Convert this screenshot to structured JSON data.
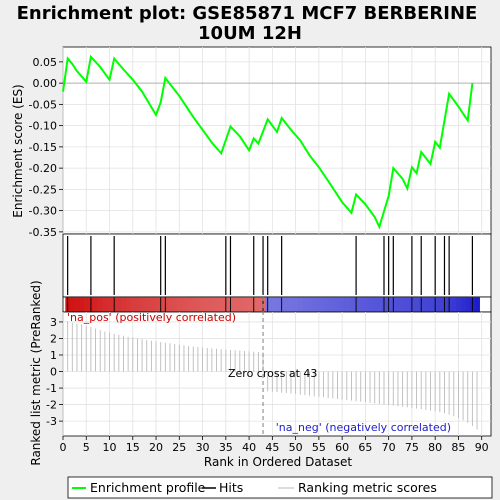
{
  "chart_data": {
    "type": "line",
    "title_line1": "Enrichment plot: GSE85871 MCF7 BERBERINE",
    "title_line2": "10UM 12H",
    "xlabel": "Rank in Ordered Dataset",
    "es_ylabel": "Enrichment score (ES)",
    "rank_ylabel": "Ranked list metric (PreRanked)",
    "x_ticks": [
      0,
      5,
      10,
      15,
      20,
      25,
      30,
      35,
      40,
      45,
      50,
      55,
      60,
      65,
      70,
      75,
      80,
      85,
      90
    ],
    "xlim": [
      0,
      92
    ],
    "es_ticks": [
      0.05,
      0.0,
      -0.05,
      -0.1,
      -0.15,
      -0.2,
      -0.25,
      -0.3,
      -0.35
    ],
    "es_tick_labels": [
      "0.05",
      "0.00",
      "-0.05",
      "-0.10",
      "-0.15",
      "-0.20",
      "-0.25",
      "-0.30",
      "-0.35"
    ],
    "es_ylim": [
      -0.355,
      0.085
    ],
    "rank_ticks": [
      3,
      2,
      1,
      0,
      -1,
      -2,
      -3
    ],
    "rank_ylim": [
      -3.9,
      3.6
    ],
    "es_line_color": "#00ff00",
    "hits": [
      1,
      6,
      11,
      21,
      22,
      35,
      36,
      41,
      43,
      44,
      47,
      63,
      69,
      70,
      71,
      75,
      77,
      80,
      82,
      83,
      88
    ],
    "es_curve": [
      [
        0,
        -0.02
      ],
      [
        1,
        0.058
      ],
      [
        2,
        0.045
      ],
      [
        3,
        0.028
      ],
      [
        5,
        0.003
      ],
      [
        6,
        0.062
      ],
      [
        8,
        0.038
      ],
      [
        10,
        0.008
      ],
      [
        11,
        0.058
      ],
      [
        13,
        0.032
      ],
      [
        15,
        0.008
      ],
      [
        17,
        -0.02
      ],
      [
        20,
        -0.075
      ],
      [
        21,
        -0.045
      ],
      [
        22,
        0.012
      ],
      [
        25,
        -0.03
      ],
      [
        28,
        -0.08
      ],
      [
        32,
        -0.14
      ],
      [
        34,
        -0.165
      ],
      [
        36,
        -0.102
      ],
      [
        38,
        -0.125
      ],
      [
        40,
        -0.158
      ],
      [
        41,
        -0.13
      ],
      [
        42,
        -0.142
      ],
      [
        44,
        -0.085
      ],
      [
        46,
        -0.115
      ],
      [
        47,
        -0.082
      ],
      [
        49,
        -0.11
      ],
      [
        51,
        -0.135
      ],
      [
        53,
        -0.17
      ],
      [
        55,
        -0.198
      ],
      [
        57,
        -0.23
      ],
      [
        60,
        -0.28
      ],
      [
        62,
        -0.305
      ],
      [
        63,
        -0.262
      ],
      [
        65,
        -0.285
      ],
      [
        67,
        -0.315
      ],
      [
        68,
        -0.338
      ],
      [
        70,
        -0.265
      ],
      [
        71,
        -0.2
      ],
      [
        73,
        -0.225
      ],
      [
        74,
        -0.248
      ],
      [
        75,
        -0.198
      ],
      [
        76,
        -0.212
      ],
      [
        77,
        -0.162
      ],
      [
        79,
        -0.19
      ],
      [
        80,
        -0.138
      ],
      [
        81,
        -0.152
      ],
      [
        83,
        -0.025
      ],
      [
        85,
        -0.055
      ],
      [
        87,
        -0.088
      ],
      [
        88,
        0.0
      ]
    ],
    "ranked_metric": [
      3.05,
      2.95,
      2.9,
      2.85,
      2.75,
      2.7,
      2.6,
      2.5,
      2.42,
      2.35,
      2.28,
      2.22,
      2.16,
      2.1,
      2.05,
      2.0,
      1.95,
      1.9,
      1.86,
      1.82,
      1.78,
      1.74,
      1.7,
      1.66,
      1.62,
      1.58,
      1.54,
      1.51,
      1.48,
      1.45,
      1.42,
      1.4,
      1.38,
      1.35,
      1.33,
      1.3,
      1.28,
      1.26,
      1.24,
      1.22,
      1.2,
      1.18,
      1.16,
      -1.2,
      -1.22,
      -1.25,
      -1.28,
      -1.3,
      -1.33,
      -1.36,
      -1.4,
      -1.43,
      -1.46,
      -1.5,
      -1.53,
      -1.56,
      -1.6,
      -1.63,
      -1.66,
      -1.7,
      -1.73,
      -1.76,
      -1.8,
      -1.83,
      -1.86,
      -1.9,
      -1.93,
      -1.96,
      -2.0,
      -2.03,
      -2.06,
      -2.1,
      -2.13,
      -2.16,
      -2.2,
      -2.24,
      -2.28,
      -2.32,
      -2.36,
      -2.4,
      -2.46,
      -2.52,
      -2.6,
      -2.7,
      -2.82,
      -2.95,
      -3.1,
      -3.3,
      -3.5
    ],
    "zero_cross_label": "Zero cross at 43",
    "zero_cross_rank": 43,
    "pos_label": "'na_pos' (positively correlated)",
    "neg_label": "'na_neg' (negatively correlated)",
    "pos_color": "#cc0000",
    "neg_color": "#1c1ccc",
    "legend": [
      {
        "label": "Enrichment profile",
        "color": "#00ff00"
      },
      {
        "label": "Hits",
        "color": "#000000"
      },
      {
        "label": "Ranking metric scores",
        "color": "#bbbbbb"
      }
    ]
  }
}
